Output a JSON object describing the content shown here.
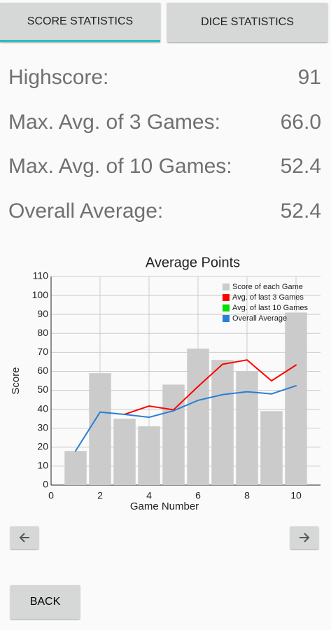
{
  "tabs": [
    "SCORE STATISTICS",
    "DICE STATISTICS"
  ],
  "stats": [
    {
      "label": "Highscore:",
      "value": "91"
    },
    {
      "label": "Max. Avg. of 3 Games:",
      "value": "66.0"
    },
    {
      "label": "Max. Avg. of 10 Games:",
      "value": "52.4"
    },
    {
      "label": "Overall Average:",
      "value": "52.4"
    }
  ],
  "chart_data": {
    "type": "bar",
    "title": "Average Points",
    "x_label": "Game Number",
    "y_label": "Score",
    "x": [
      1,
      2,
      3,
      4,
      5,
      6,
      7,
      8,
      9,
      10
    ],
    "series": [
      {
        "name": "Score of each Game",
        "type": "bar",
        "color": "#cbcbcb",
        "values": [
          18,
          59,
          35,
          31,
          53,
          72,
          66,
          60,
          39,
          91
        ]
      },
      {
        "name": "Avg. of last 3 Games",
        "type": "line",
        "color": "#ff0000",
        "values": [
          null,
          null,
          37.3,
          41.7,
          39.7,
          52,
          63.7,
          66,
          55,
          63.3
        ]
      },
      {
        "name": "Avg. of last 10 Games",
        "type": "line",
        "color": "#00e000",
        "values": [
          null,
          null,
          null,
          null,
          null,
          null,
          null,
          null,
          null,
          52.4
        ]
      },
      {
        "name": "Overall Average",
        "type": "line",
        "color": "#2a7fd4",
        "values": [
          18,
          38.5,
          37.3,
          35.75,
          39.2,
          44.7,
          47.7,
          49.25,
          48.1,
          52.4
        ]
      }
    ],
    "xlim": [
      0,
      11
    ],
    "xticks": [
      0,
      2,
      4,
      6,
      8,
      10
    ],
    "ylim": [
      0,
      110
    ],
    "yticks": [
      0,
      10,
      20,
      30,
      40,
      50,
      60,
      70,
      80,
      90,
      100,
      110
    ],
    "grid": true,
    "legend": "top-right"
  },
  "buttons": {
    "back": "BACK"
  }
}
